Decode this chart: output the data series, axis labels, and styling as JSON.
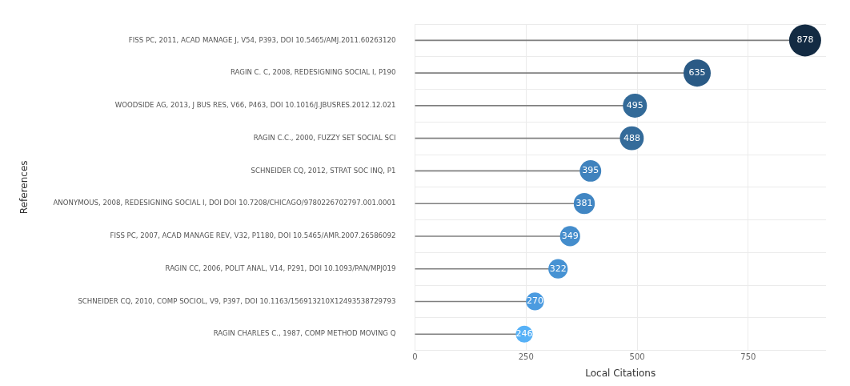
{
  "chart_data": {
    "type": "lollipop",
    "orientation": "horizontal",
    "xlabel": "Local Citations",
    "ylabel": "References",
    "categories": [
      "FISS PC, 2011, ACAD MANAGE J, V54, P393, DOI 10.5465/AMJ.2011.60263120",
      "RAGIN C. C, 2008, REDESIGNING SOCIAL I, P190",
      "WOODSIDE AG, 2013, J BUS RES, V66, P463, DOI 10.1016/J.JBUSRES.2012.12.021",
      "RAGIN C.C., 2000, FUZZY SET SOCIAL SCI",
      "SCHNEIDER CQ, 2012, STRAT SOC INQ, P1",
      "ANONYMOUS, 2008, REDESIGNING SOCIAL I, DOI DOI 10.7208/CHICAGO/9780226702797.001.0001",
      "FISS PC, 2007, ACAD MANAGE REV, V32, P1180, DOI 10.5465/AMR.2007.26586092",
      "RAGIN CC, 2006, POLIT ANAL, V14, P291, DOI 10.1093/PAN/MPJ019",
      "SCHNEIDER CQ, 2010, COMP SOCIOL, V9, P397, DOI 10.1163/156913210X12493538729793",
      "RAGIN CHARLES C., 1987, COMP METHOD MOVING Q"
    ],
    "values": [
      878,
      635,
      495,
      488,
      395,
      381,
      349,
      322,
      270,
      246
    ],
    "sizes": [
      1,
      0.723,
      0.564,
      0.556,
      0.45,
      0.434,
      0.397,
      0.367,
      0.308,
      0.28
    ],
    "colors": [
      "#132b43",
      "#2a5a85",
      "#336a98",
      "#346b9a",
      "#3f82bd",
      "#4186c3",
      "#448dcc",
      "#4692d3",
      "#4b9be0",
      "#56b1f7"
    ],
    "xlim": [
      0,
      925
    ],
    "xticks": [
      0,
      250,
      500,
      750
    ],
    "grid": true,
    "legend": false,
    "data_labels": true,
    "marker": "circle"
  }
}
